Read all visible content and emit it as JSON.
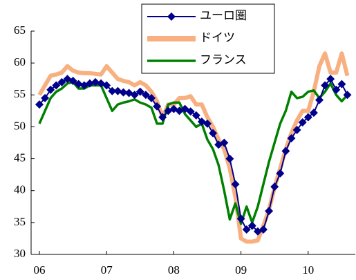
{
  "chart_data": {
    "type": "line",
    "categories": [
      "06",
      null,
      null,
      null,
      null,
      null,
      null,
      null,
      null,
      null,
      null,
      null,
      "07",
      null,
      null,
      null,
      null,
      null,
      null,
      null,
      null,
      null,
      null,
      null,
      "08",
      null,
      null,
      null,
      null,
      null,
      null,
      null,
      null,
      null,
      null,
      null,
      "09",
      null,
      null,
      null,
      null,
      null,
      null,
      null,
      null,
      null,
      null,
      null,
      "10",
      null,
      null,
      null,
      null,
      null,
      null,
      null
    ],
    "series": [
      {
        "name": "ユーロ圏",
        "color": "#00008b",
        "marker": "diamond",
        "values": [
          53.5,
          54.5,
          55.8,
          56.5,
          57,
          57.5,
          57.2,
          56.7,
          56.5,
          56.8,
          57,
          56.8,
          56.5,
          55.6,
          55.6,
          55.4,
          55.3,
          55,
          55.5,
          55,
          54.5,
          53.2,
          51.5,
          52.5,
          52.8,
          52.5,
          52.8,
          52.4,
          51.8,
          50.8,
          50.5,
          49,
          47.2,
          47.5,
          45,
          41,
          35.6,
          33.9,
          34.5,
          33.6,
          33.9,
          36.8,
          40.6,
          42.7,
          46.2,
          48.2,
          49.5,
          50.7,
          51.5,
          52.2,
          54.2,
          56.5,
          57.5,
          55.8,
          56.7,
          55
        ]
      },
      {
        "name": "ドイツ",
        "color": "#f8b080",
        "values": [
          55,
          56.5,
          58,
          58.2,
          58.5,
          59.5,
          58.8,
          58.5,
          58.4,
          58.4,
          58.3,
          58.2,
          59.5,
          58.5,
          57.5,
          57.2,
          57,
          56.5,
          57,
          56.5,
          55.5,
          54,
          51.5,
          53.5,
          53.5,
          54.5,
          54.5,
          54.8,
          53.5,
          53.5,
          51.5,
          50,
          48,
          46.5,
          43.5,
          39,
          32.5,
          32,
          32,
          32.2,
          34.5,
          37,
          40.5,
          43.5,
          46.5,
          49,
          51,
          52.5,
          52.5,
          55.5,
          59.5,
          61.5,
          58.5,
          58.5,
          61.5,
          58
        ]
      },
      {
        "name": "フランス",
        "color": "#008000",
        "values": [
          50.5,
          52.5,
          54.5,
          55.5,
          56,
          56.8,
          57,
          56,
          56,
          56.5,
          56.5,
          56.5,
          54.5,
          52.5,
          53.5,
          53.8,
          54,
          54.3,
          53.8,
          53.5,
          53,
          50.5,
          50.5,
          53.5,
          53.8,
          53.8,
          52,
          51,
          50,
          50.5,
          48,
          46.5,
          44,
          40,
          35.5,
          38,
          34.8,
          37.5,
          35,
          37.5,
          41,
          44.5,
          47.5,
          50.5,
          52.5,
          55.5,
          54.5,
          54.7,
          55.5,
          55.7,
          54.5,
          55.5,
          56.8,
          55,
          54,
          55
        ]
      }
    ],
    "ylim": [
      30,
      65
    ],
    "yticks": [
      30,
      35,
      40,
      45,
      50,
      55,
      60,
      65
    ],
    "legend": "upper center"
  }
}
